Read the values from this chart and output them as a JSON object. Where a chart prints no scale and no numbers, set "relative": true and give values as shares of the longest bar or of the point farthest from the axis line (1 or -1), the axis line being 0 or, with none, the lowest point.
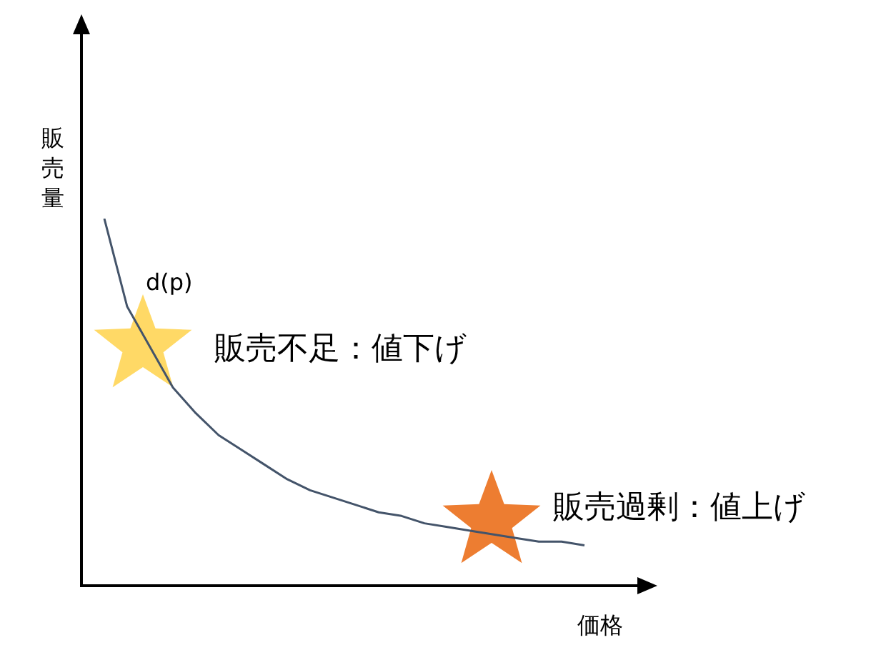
{
  "chart_data": {
    "type": "line",
    "relative": true,
    "xlabel": "価格",
    "ylabel": "販売量",
    "tick_labels": false,
    "categories": [
      null,
      null,
      null,
      null,
      null,
      null,
      null,
      null,
      null,
      null,
      null,
      null,
      null,
      null,
      null,
      null,
      null,
      null,
      null,
      null,
      null,
      null,
      null,
      null,
      null,
      null
    ],
    "series": [
      {
        "color": "#44546a",
        "marker": "none",
        "values": [
          null,
          1,
          0.76,
          null,
          0.54,
          0.47,
          0.41,
          0.37,
          0.33,
          0.29,
          0.26,
          0.24,
          0.22,
          0.2,
          0.19,
          0.17,
          0.16,
          0.15,
          null,
          0.13,
          0.12,
          0.12,
          0.11,
          null,
          null,
          null
        ]
      }
    ],
    "annotations": [
      "d(p)",
      "販売不足：値下げ",
      "販売過剰：値上げ"
    ]
  }
}
